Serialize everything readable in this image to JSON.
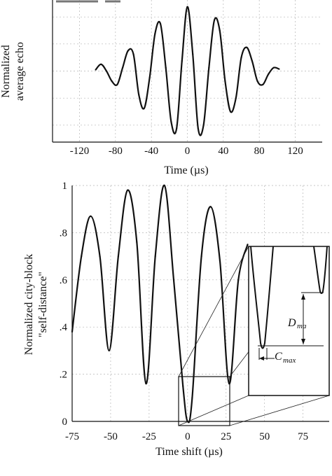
{
  "chart_data": [
    {
      "type": "line",
      "ylabel_line1": "Normalized",
      "ylabel_line2": "average echo",
      "xlabel": "Time (µs)",
      "xticks": [
        -120,
        -80,
        -40,
        0,
        40,
        80,
        120
      ],
      "xtick_labels": [
        "-120",
        "-80",
        "-40",
        "0",
        "40",
        "80",
        "120"
      ],
      "xlim": [
        -150,
        150
      ],
      "ylim": [
        -1.05,
        1.05
      ],
      "grid": true,
      "series": [
        {
          "x": [
            -102,
            -96,
            -90,
            -84,
            -78,
            -72,
            -66,
            -60,
            -54,
            -48,
            -42,
            -36,
            -30,
            -24,
            -18,
            -12,
            -6,
            0,
            6,
            12,
            18,
            24,
            30,
            36,
            42,
            48,
            54,
            60,
            66,
            72,
            78,
            84,
            90,
            96,
            102
          ],
          "y": [
            0.02,
            0.1,
            0.0,
            -0.15,
            -0.2,
            0.05,
            0.3,
            0.25,
            -0.35,
            -0.55,
            -0.1,
            0.55,
            0.7,
            0.05,
            -0.75,
            -0.85,
            0.15,
            0.95,
            0.25,
            -0.85,
            -0.8,
            0.05,
            0.75,
            0.6,
            -0.15,
            -0.6,
            -0.4,
            0.2,
            0.35,
            0.15,
            -0.15,
            -0.2,
            -0.05,
            0.05,
            0.03
          ]
        }
      ]
    },
    {
      "type": "line",
      "ylabel_line1": "Normalized city-block",
      "ylabel_line2": "\"self-distance\"",
      "xlabel": "Time shift (µs)",
      "xticks": [
        -75,
        -50,
        -25,
        0,
        25,
        50,
        75
      ],
      "xtick_labels": [
        "-75",
        "-50",
        "-25",
        "0",
        "25",
        "50",
        "75"
      ],
      "yticks": [
        0,
        0.2,
        0.4,
        0.6,
        0.8,
        1.0
      ],
      "ytick_labels": [
        "0",
        ".2",
        ".4",
        ".6",
        ".8",
        "1"
      ],
      "xlim": [
        -75,
        92
      ],
      "ylim": [
        0,
        1
      ],
      "grid": true,
      "series": [
        {
          "x": [
            -75,
            -69,
            -63,
            -57,
            -51,
            -45,
            -39,
            -33,
            -27,
            -21,
            -15,
            -9,
            -3,
            0,
            3,
            9,
            15,
            21,
            27,
            33,
            39
          ],
          "y": [
            0.38,
            0.7,
            0.87,
            0.7,
            0.3,
            0.7,
            0.98,
            0.76,
            0.16,
            0.7,
            1.0,
            0.6,
            0.15,
            0.0,
            0.1,
            0.7,
            0.91,
            0.68,
            0.16,
            0.6,
            0.75
          ]
        }
      ],
      "inset": {
        "label_d": "D",
        "label_d_sub": "ma",
        "label_c": "C",
        "label_c_sub": "max"
      }
    }
  ]
}
